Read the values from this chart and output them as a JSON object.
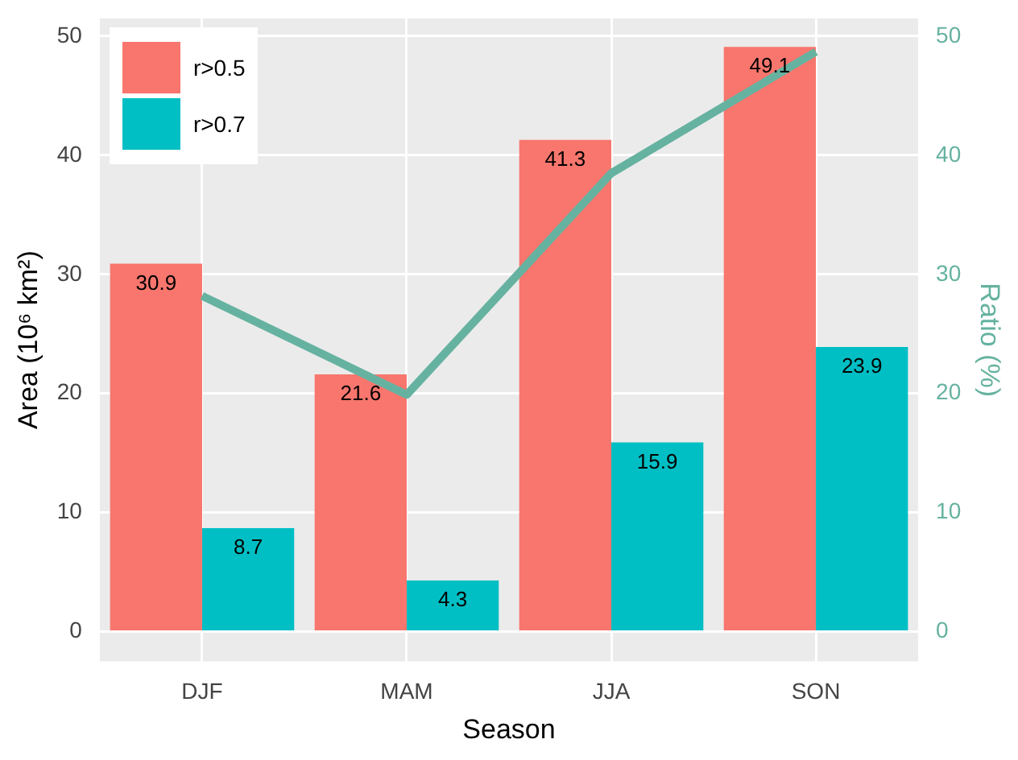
{
  "chart_data": {
    "type": "bar",
    "xlabel": "Season",
    "ylabel": "Area (10⁶ km²)",
    "y2label": "Ratio (%)",
    "categories": [
      "DJF",
      "MAM",
      "JJA",
      "SON"
    ],
    "series": [
      {
        "name": "r>0.5",
        "color": "#f8766d",
        "values": [
          30.9,
          21.6,
          41.3,
          49.1
        ],
        "value_labels": [
          "30.9",
          "21.6",
          "41.3",
          "49.1"
        ]
      },
      {
        "name": "r>0.7",
        "color": "#00bfc4",
        "values": [
          8.7,
          4.3,
          15.9,
          23.9
        ],
        "value_labels": [
          "8.7",
          "4.3",
          "15.9",
          "23.9"
        ]
      },
      {
        "type": "line",
        "axis": "y2",
        "color": "#66b2a0",
        "values": [
          28.2,
          19.9,
          38.5,
          48.7
        ]
      }
    ],
    "ylim": [
      -2.5,
      51.5
    ],
    "yticks": [
      0,
      10,
      20,
      30,
      40,
      50
    ],
    "y2lim": [
      -2.5,
      51.5
    ],
    "y2ticks": [
      0,
      10,
      20,
      30,
      40,
      50
    ],
    "grid": true,
    "legend": "top left",
    "marker": "none"
  }
}
